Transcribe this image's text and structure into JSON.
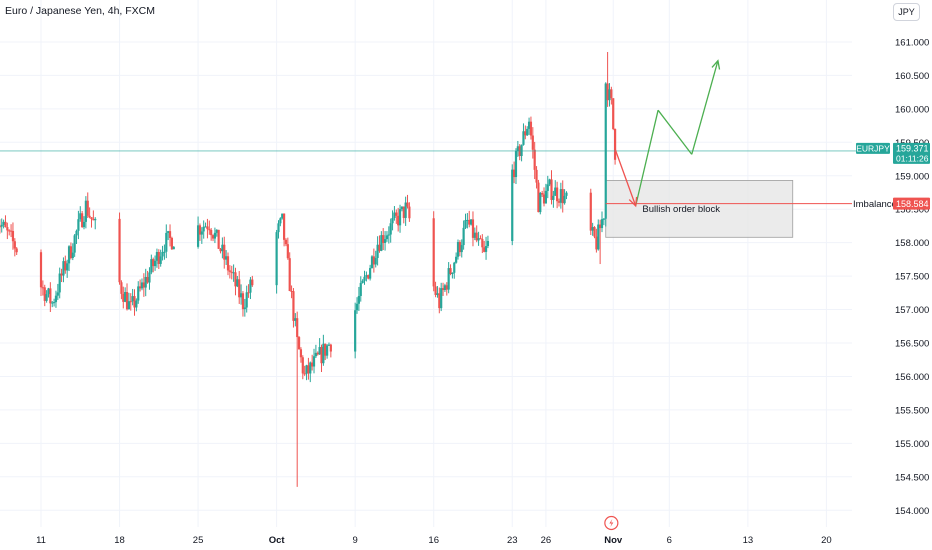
{
  "header": {
    "title": "Euro / Japanese Yen, 4h, FXCM",
    "currency_button": "JPY"
  },
  "price_tag": {
    "symbol": "EURJPY",
    "price": "159.371",
    "countdown": "01:11:26"
  },
  "colors": {
    "up": "#26a69a",
    "down": "#ef5350",
    "grid": "#f0f3fa",
    "price_line": "#26a69a",
    "imbalance": "#ef5350",
    "projection_green": "#4caf50",
    "projection_red": "#ef5350",
    "order_block_fill": "#e6e6e6"
  },
  "annotations": {
    "imbalance_label": "Imbalance",
    "imbalance_price": "158.584",
    "order_block_label": "Bullish order block"
  },
  "events": {
    "economic_event_icon": "lightning-icon"
  },
  "chart_data": {
    "type": "candlestick",
    "title": "Euro / Japanese Yen, 4h, FXCM",
    "y_axis": {
      "ylim": [
        153.85,
        161.5
      ],
      "ticks": [
        "161.000",
        "160.500",
        "160.000",
        "159.500",
        "159.000",
        "158.500",
        "158.000",
        "157.500",
        "157.000",
        "156.500",
        "156.000",
        "155.500",
        "155.000",
        "154.500",
        "154.000"
      ]
    },
    "x_axis": {
      "ticks": [
        "11",
        "18",
        "25",
        "Oct",
        "9",
        "16",
        "23",
        "26",
        "Nov",
        "6",
        "13",
        "20"
      ],
      "tick_dates": [
        "2023-09-11",
        "2023-09-18",
        "2023-09-25",
        "2023-10-02",
        "2023-10-09",
        "2023-10-16",
        "2023-10-23",
        "2023-10-26",
        "2023-11-01",
        "2023-11-06",
        "2023-11-13",
        "2023-11-20"
      ]
    },
    "current_price": 159.371,
    "imbalance_level": 158.584,
    "order_block": {
      "top": 158.93,
      "bottom": 158.08,
      "start": "2023-10-31T08:00",
      "end": "2023-11-17T00:00"
    },
    "projection": [
      {
        "x": "2023-11-01T04:00",
        "y": 159.4,
        "color": "red"
      },
      {
        "x": "2023-11-03T00:00",
        "y": 158.55,
        "color": "red"
      },
      {
        "x": "2023-11-05T00:00",
        "y": 159.98,
        "color": "green"
      },
      {
        "x": "2023-11-08T00:00",
        "y": 159.32,
        "color": "green"
      },
      {
        "x": "2023-11-10T08:00",
        "y": 160.72,
        "color": "green"
      }
    ],
    "anchors": [
      {
        "x": "2023-09-07T00:00",
        "y": 158.38
      },
      {
        "x": "2023-09-12T00:00",
        "y": 157.1
      },
      {
        "x": "2023-09-15T00:00",
        "y": 158.55
      },
      {
        "x": "2023-09-19T00:00",
        "y": 157.0
      },
      {
        "x": "2023-09-22T00:00",
        "y": 158.0
      },
      {
        "x": "2023-09-26T00:00",
        "y": 158.3
      },
      {
        "x": "2023-09-29T00:00",
        "y": 157.1
      },
      {
        "x": "2023-10-02T12:00",
        "y": 158.3
      },
      {
        "x": "2023-10-03T20:00",
        "y": 156.5
      },
      {
        "x": "2023-10-04T12:00",
        "y": 156.0
      },
      {
        "x": "2023-10-09T00:00",
        "y": 157.0
      },
      {
        "x": "2023-10-11T00:00",
        "y": 158.0
      },
      {
        "x": "2023-10-13T12:00",
        "y": 158.5
      },
      {
        "x": "2023-10-16T12:00",
        "y": 157.1
      },
      {
        "x": "2023-10-19T00:00",
        "y": 158.3
      },
      {
        "x": "2023-10-20T12:00",
        "y": 157.8
      },
      {
        "x": "2023-10-23T12:00",
        "y": 159.3
      },
      {
        "x": "2023-10-24T12:00",
        "y": 159.85
      },
      {
        "x": "2023-10-25T08:00",
        "y": 158.6
      },
      {
        "x": "2023-10-26T08:00",
        "y": 158.8
      },
      {
        "x": "2023-10-27T12:00",
        "y": 158.7
      },
      {
        "x": "2023-10-30T12:00",
        "y": 158.0
      },
      {
        "x": "2023-10-31T04:00",
        "y": 158.45
      },
      {
        "x": "2023-10-31T08:00",
        "y": 160.4
      },
      {
        "x": "2023-10-31T20:00",
        "y": 160.05
      },
      {
        "x": "2023-11-01T04:00",
        "y": 159.37
      }
    ],
    "wick_extremes": [
      {
        "x": "2023-10-03T20:00",
        "low": 154.35
      },
      {
        "x": "2023-10-31T12:00",
        "high": 160.85
      },
      {
        "x": "2023-10-30T20:00",
        "low": 157.68
      }
    ]
  }
}
